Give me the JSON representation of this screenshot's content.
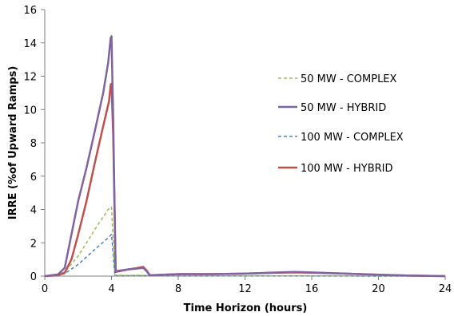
{
  "chart_data": {
    "type": "line",
    "title": "",
    "xlabel": "Time Horizon (hours)",
    "ylabel": "IRRE (%of Upward Ramps)",
    "xlim": [
      0,
      24
    ],
    "ylim": [
      0,
      16
    ],
    "xticks": [
      0,
      4,
      8,
      12,
      16,
      20,
      24
    ],
    "yticks": [
      0,
      2,
      4,
      6,
      8,
      10,
      12,
      14,
      16
    ],
    "grid": false,
    "legend_position": "right",
    "series": [
      {
        "name": "50 MW - COMPLEX",
        "color": "#9BBB59",
        "dash": "dashed",
        "x": [
          0,
          0.8,
          1.2,
          2,
          3,
          3.8,
          4,
          4.2,
          5,
          6,
          8,
          12,
          16,
          20,
          24
        ],
        "y": [
          0,
          0.1,
          0.25,
          1.2,
          2.8,
          4.0,
          4.15,
          0.05,
          0.05,
          0.05,
          0.03,
          0.02,
          0.02,
          0.01,
          0.0
        ]
      },
      {
        "name": "50 MW - HYBRID",
        "color": "#8064A2",
        "dash": "solid",
        "x": [
          0,
          0.8,
          1.2,
          1.6,
          2,
          2.5,
          3,
          3.5,
          3.8,
          3.95,
          4.0,
          4.1,
          4.25,
          5,
          5.5,
          5.9,
          6.1,
          6.3,
          8,
          10,
          12,
          14,
          15,
          16,
          18,
          20,
          22,
          24
        ],
        "y": [
          0,
          0.1,
          0.5,
          2.5,
          4.5,
          6.5,
          8.7,
          11,
          12.8,
          14.3,
          14.4,
          9.5,
          0.3,
          0.4,
          0.45,
          0.5,
          0.3,
          0.05,
          0.12,
          0.12,
          0.15,
          0.22,
          0.25,
          0.22,
          0.15,
          0.08,
          0.03,
          0.0
        ]
      },
      {
        "name": "100 MW - COMPLEX",
        "color": "#4F81BD",
        "dash": "dashed",
        "x": [
          0,
          0.8,
          1.2,
          2,
          3,
          3.8,
          4,
          4.2,
          5,
          6,
          8,
          12,
          16,
          20,
          24
        ],
        "y": [
          0,
          0.05,
          0.15,
          0.7,
          1.6,
          2.3,
          2.5,
          0.03,
          0.03,
          0.03,
          0.02,
          0.01,
          0.01,
          0.0,
          0.0
        ]
      },
      {
        "name": "100 MW - HYBRID",
        "color": "#C0504D",
        "dash": "solid",
        "x": [
          0,
          0.8,
          1.2,
          1.6,
          2,
          2.5,
          3,
          3.5,
          3.85,
          3.95,
          4.0,
          4.1,
          4.25,
          5,
          5.5,
          5.9,
          6.1,
          6.3,
          8,
          10,
          12,
          14,
          15,
          16,
          18,
          20,
          22,
          24
        ],
        "y": [
          0,
          0.05,
          0.2,
          1.0,
          2.5,
          4.5,
          6.8,
          9.0,
          10.5,
          11.5,
          11.55,
          8.5,
          0.25,
          0.4,
          0.48,
          0.55,
          0.35,
          0.05,
          0.12,
          0.12,
          0.15,
          0.2,
          0.22,
          0.2,
          0.15,
          0.08,
          0.03,
          0.0
        ]
      }
    ]
  }
}
